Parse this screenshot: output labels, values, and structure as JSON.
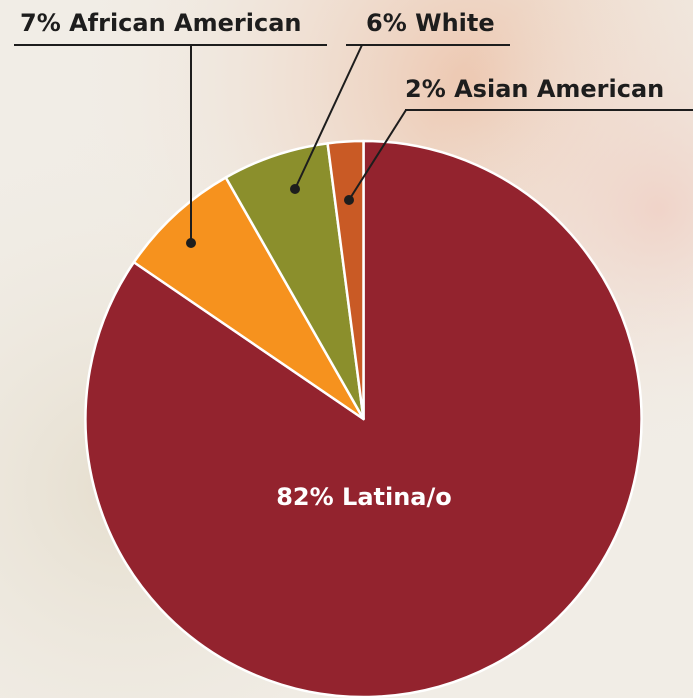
{
  "chart_data": {
    "type": "pie",
    "start": "12 o'clock, clockwise",
    "slices": [
      {
        "name": "Latina/o",
        "value": 82,
        "label": "82% Latina/o",
        "color": "#93232e",
        "label_placement": "inside"
      },
      {
        "name": "African American",
        "value": 7,
        "label": "7% African American",
        "color": "#f6921e",
        "label_placement": "callout-left"
      },
      {
        "name": "White",
        "value": 6,
        "label": "6% White",
        "color": "#8b8f2c",
        "label_placement": "callout-top"
      },
      {
        "name": "Asian American",
        "value": 2,
        "label": "2% Asian American",
        "color": "#c95a25",
        "label_placement": "callout-right"
      }
    ],
    "slice_border_color": "#ffffff",
    "leader_line_color": "#1d1d1d",
    "background": "photo (faded)"
  }
}
